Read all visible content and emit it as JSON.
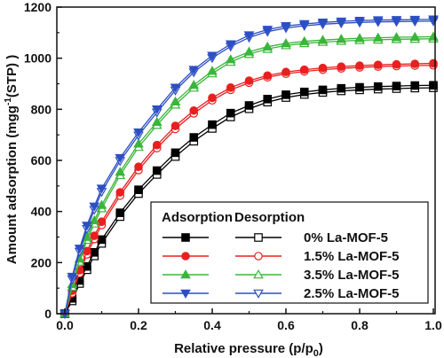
{
  "chart_data": {
    "type": "line",
    "xlabel": "Relative pressure (p/p",
    "xlabel_sub": "0",
    "xlabel_tail": ")",
    "ylabel_pre": "Amount adsorption (mgg",
    "ylabel_sup": "-1",
    "ylabel_post": "(STP) )",
    "xlim": [
      0,
      1.0
    ],
    "ylim": [
      0,
      1200
    ],
    "xticks": [
      "0.0",
      "0.2",
      "0.4",
      "0.6",
      "0.8",
      "1.0"
    ],
    "yticks": [
      "0",
      "200",
      "400",
      "600",
      "800",
      "1000",
      "1200"
    ],
    "legend": {
      "header_adsorption": "Adsorption",
      "header_desorption": "Desorption",
      "placement": "center-right"
    },
    "x": [
      0,
      0.02,
      0.04,
      0.06,
      0.08,
      0.1,
      0.15,
      0.2,
      0.25,
      0.3,
      0.35,
      0.4,
      0.45,
      0.5,
      0.55,
      0.6,
      0.65,
      0.7,
      0.75,
      0.8,
      0.85,
      0.9,
      0.95,
      1.0
    ],
    "series": [
      {
        "name": "0%  La-MOF-5",
        "color": "#000000",
        "ads_marker": "square-filled",
        "des_marker": "square-open",
        "adsorption": [
          0,
          60,
          130,
          185,
          240,
          290,
          395,
          485,
          560,
          630,
          690,
          740,
          785,
          815,
          840,
          857,
          868,
          876,
          882,
          886,
          889,
          891,
          893,
          894
        ],
        "desorption": [
          0,
          50,
          118,
          172,
          226,
          275,
          380,
          470,
          545,
          615,
          675,
          725,
          770,
          802,
          828,
          846,
          858,
          866,
          872,
          876,
          879,
          881,
          883,
          884
        ]
      },
      {
        "name": "1.5% La-MOF-5",
        "color": "#e8201f",
        "ads_marker": "circle-filled",
        "des_marker": "circle-open",
        "adsorption": [
          0,
          90,
          170,
          245,
          305,
          360,
          475,
          575,
          660,
          735,
          795,
          845,
          885,
          912,
          932,
          946,
          955,
          962,
          967,
          971,
          974,
          976,
          978,
          980
        ],
        "desorption": [
          0,
          80,
          158,
          232,
          292,
          347,
          462,
          562,
          648,
          723,
          784,
          835,
          876,
          904,
          925,
          939,
          948,
          955,
          960,
          964,
          967,
          969,
          971,
          972
        ]
      },
      {
        "name": "3.5% La-MOF-5",
        "color": "#3bb53b",
        "ads_marker": "triangle-filled",
        "des_marker": "triangle-open",
        "adsorption": [
          0,
          115,
          215,
          300,
          365,
          425,
          555,
          665,
          750,
          830,
          895,
          950,
          995,
          1025,
          1045,
          1058,
          1066,
          1071,
          1075,
          1078,
          1080,
          1082,
          1083,
          1084
        ],
        "desorption": [
          0,
          105,
          203,
          288,
          352,
          412,
          542,
          652,
          738,
          818,
          884,
          940,
          985,
          1016,
          1036,
          1050,
          1058,
          1063,
          1067,
          1070,
          1072,
          1074,
          1075,
          1076
        ]
      },
      {
        "name": "2.5% La-MOF-5",
        "color": "#2d4fc4",
        "ads_marker": "triangle-down-filled",
        "des_marker": "triangle-down-open",
        "adsorption": [
          0,
          145,
          255,
          345,
          420,
          490,
          610,
          710,
          800,
          885,
          955,
          1010,
          1055,
          1090,
          1112,
          1126,
          1134,
          1140,
          1144,
          1147,
          1149,
          1150,
          1151,
          1152
        ],
        "desorption": [
          0,
          135,
          243,
          332,
          407,
          477,
          598,
          698,
          788,
          874,
          945,
          1001,
          1046,
          1081,
          1104,
          1118,
          1127,
          1133,
          1137,
          1140,
          1142,
          1143,
          1144,
          1145
        ]
      }
    ]
  }
}
